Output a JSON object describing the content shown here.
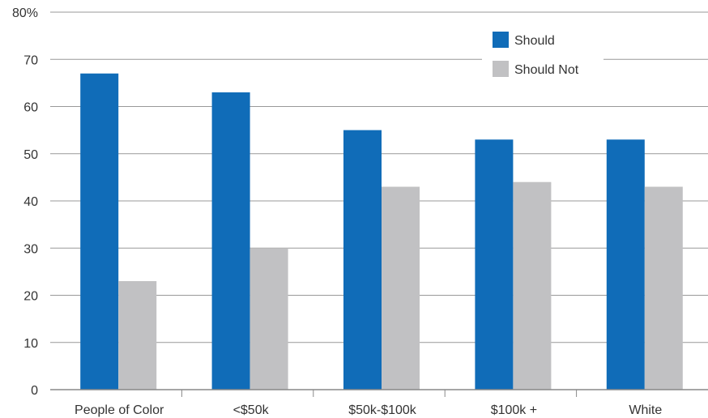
{
  "chart_data": {
    "type": "bar",
    "categories": [
      "People of Color",
      "<$50k",
      "$50k-$100k",
      "$100k +",
      "White"
    ],
    "series": [
      {
        "name": "Should",
        "values": [
          67,
          63,
          55,
          53,
          53
        ],
        "color": "#106cb8"
      },
      {
        "name": "Should Not",
        "values": [
          23,
          30,
          43,
          44,
          43
        ],
        "color": "#c1c1c3"
      }
    ],
    "y_ticks": [
      "0",
      "10",
      "20",
      "30",
      "40",
      "50",
      "60",
      "70",
      "80%"
    ],
    "ylim": [
      0,
      80
    ],
    "grid": true,
    "legend_position": "top-right"
  }
}
